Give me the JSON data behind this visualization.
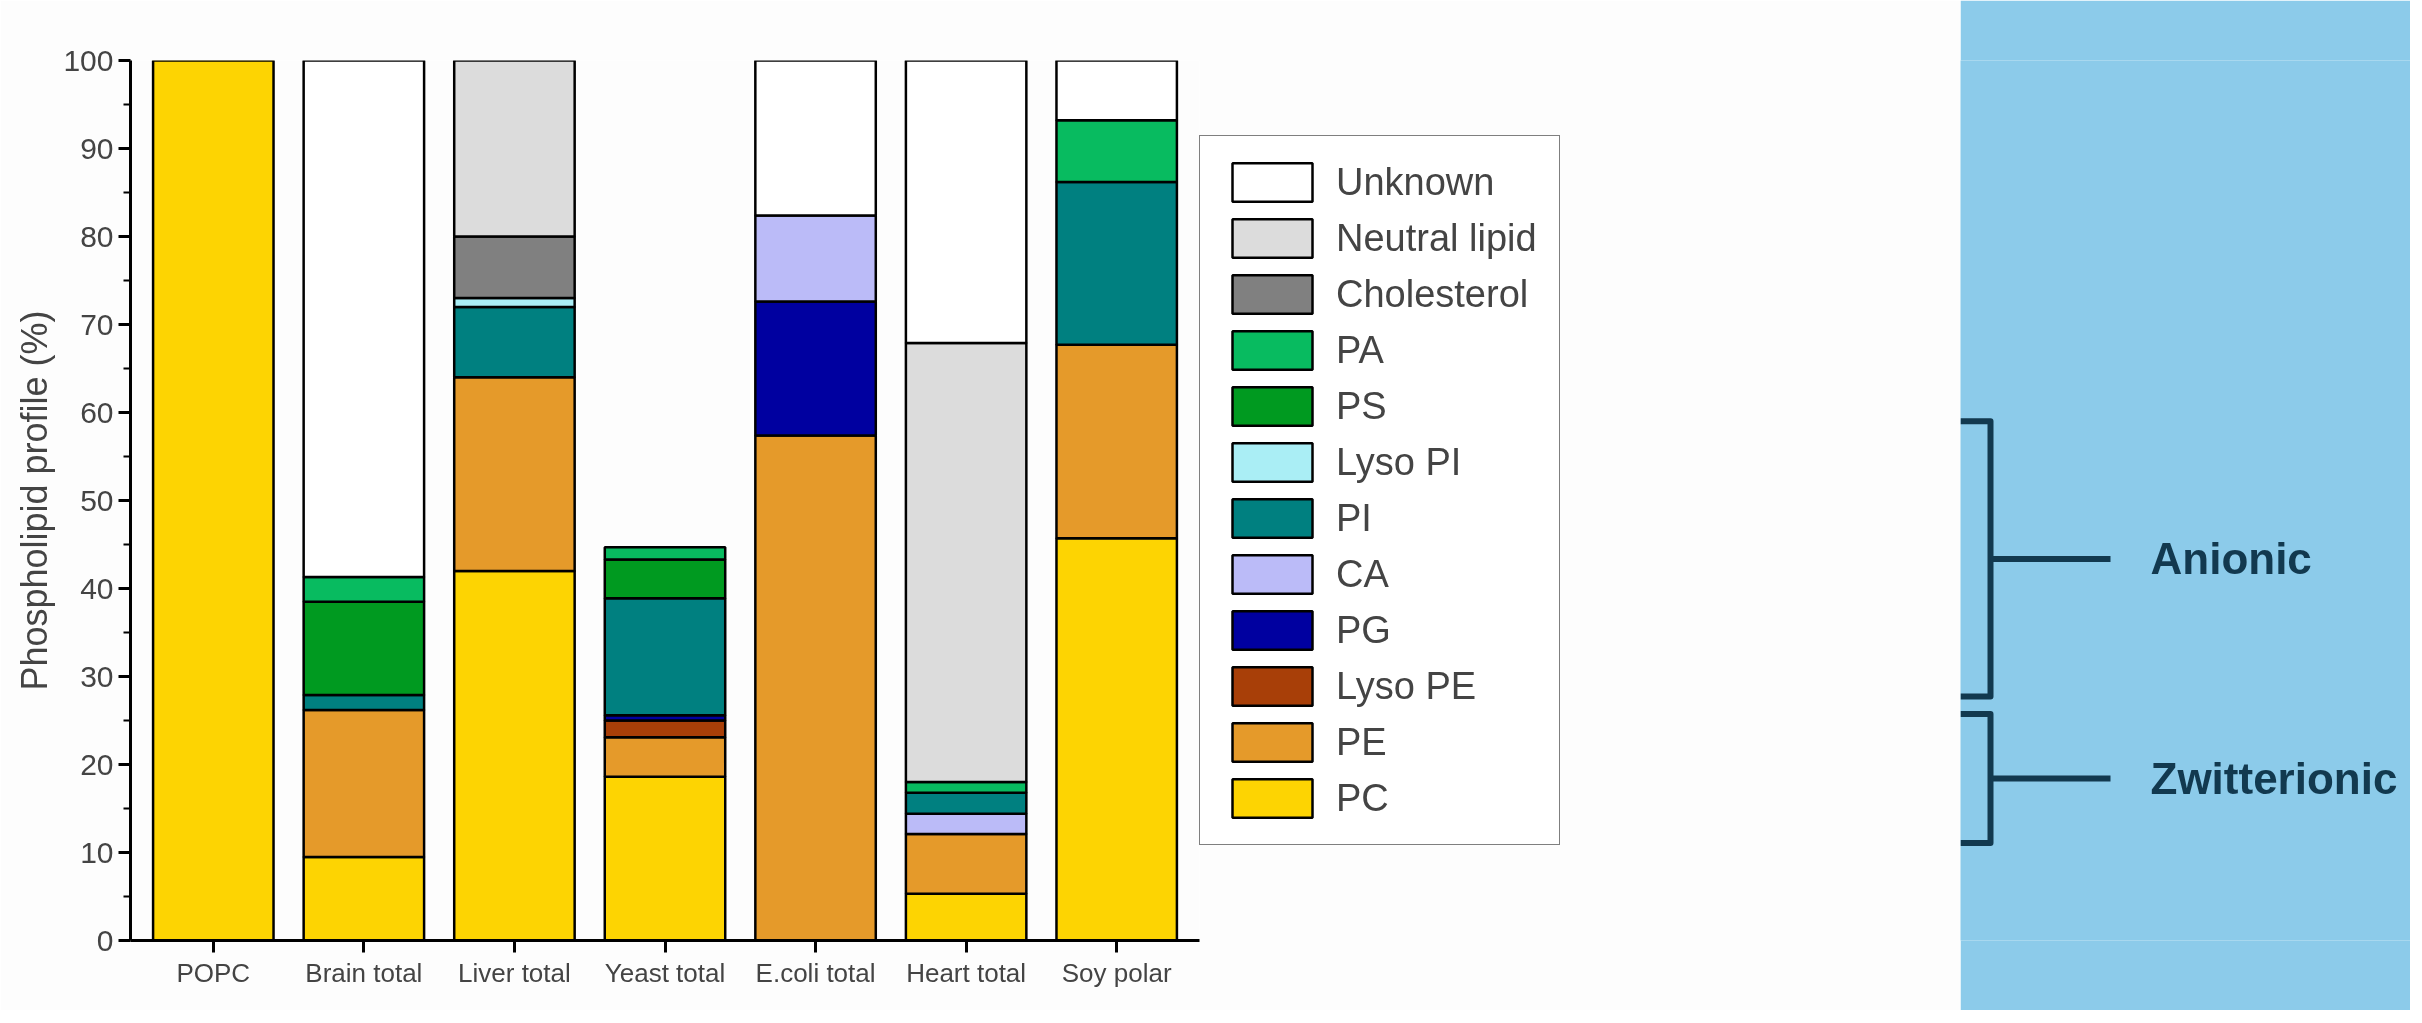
{
  "chart_data": {
    "type": "bar",
    "stacked": true,
    "ylabel": "Phospholipid profile (%)",
    "categories": [
      "POPC",
      "Brain total",
      "Liver total",
      "Yeast total",
      "E.coli total",
      "Heart total",
      "Soy polar"
    ],
    "series": [
      {
        "name": "PC",
        "color": "#fdd402",
        "values": [
          100,
          9.5,
          42,
          18.6,
          null,
          5.3,
          45.7
        ]
      },
      {
        "name": "PE",
        "color": "#e59a2a",
        "values": [
          null,
          16.7,
          22,
          4.5,
          57.4,
          6.8,
          22.0
        ]
      },
      {
        "name": "Lyso PE",
        "color": "#a83f08",
        "values": [
          null,
          null,
          null,
          1.9,
          null,
          null,
          null
        ]
      },
      {
        "name": "PG",
        "color": "#0000a0",
        "values": [
          null,
          null,
          null,
          0.6,
          15.2,
          null,
          null
        ]
      },
      {
        "name": "CA",
        "color": "#bbbbf8",
        "values": [
          null,
          null,
          null,
          null,
          9.8,
          2.3,
          null
        ]
      },
      {
        "name": "PI",
        "color": "#008080",
        "values": [
          null,
          1.7,
          8,
          13.3,
          null,
          2.4,
          18.5
        ]
      },
      {
        "name": "Lyso PI",
        "color": "#aaeef5",
        "values": [
          null,
          null,
          1,
          null,
          null,
          null,
          null
        ]
      },
      {
        "name": "PS",
        "color": "#009a20",
        "values": [
          null,
          10.6,
          null,
          4.4,
          null,
          null,
          null
        ]
      },
      {
        "name": "PA",
        "color": "#08bb60",
        "values": [
          null,
          2.8,
          null,
          1.4,
          null,
          1.2,
          7.0
        ]
      },
      {
        "name": "Cholesterol",
        "color": "#808080",
        "values": [
          null,
          null,
          7,
          null,
          null,
          null,
          null
        ]
      },
      {
        "name": "Neutral lipid",
        "color": "#dcdcdc",
        "values": [
          null,
          null,
          20,
          null,
          null,
          49.9,
          null
        ]
      },
      {
        "name": "Unknown",
        "color": "#ffffff",
        "values": [
          null,
          58.7,
          null,
          null,
          17.6,
          32.1,
          6.8
        ]
      }
    ],
    "ylim": [
      0,
      100
    ],
    "yticks": [
      0,
      10,
      20,
      30,
      40,
      50,
      60,
      70,
      80,
      90,
      100
    ],
    "grid": false,
    "legend": "right",
    "annotations": [
      "Anionic",
      "Zwitterionic"
    ]
  }
}
